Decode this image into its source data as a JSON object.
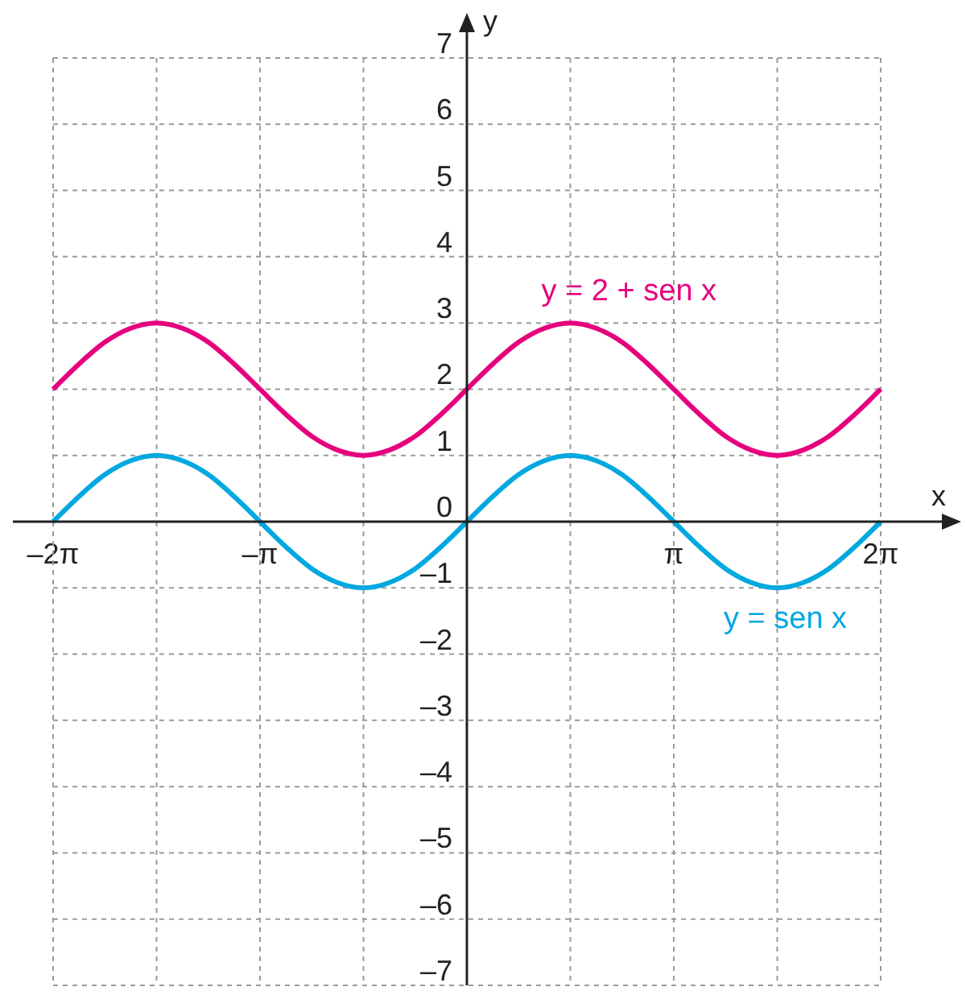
{
  "chart_data": {
    "type": "line",
    "xlabel": "x",
    "ylabel": "y",
    "categories": [
      "–2π",
      null,
      null,
      null,
      null,
      null,
      null,
      null,
      "–π",
      null,
      null,
      null,
      null,
      null,
      null,
      null,
      null,
      null,
      null,
      null,
      null,
      null,
      null,
      null,
      "π",
      null,
      null,
      null,
      null,
      null,
      null,
      null,
      "2π"
    ],
    "series": [
      {
        "name": "y = 2 + sen x",
        "color": "#e6007e",
        "values": [
          2,
          2.38,
          2.71,
          2.92,
          3,
          2.92,
          2.71,
          2.38,
          2,
          1.62,
          1.29,
          1.08,
          1,
          1.08,
          1.29,
          1.62,
          2,
          2.38,
          2.71,
          2.92,
          3,
          2.92,
          2.71,
          2.38,
          2,
          1.62,
          1.29,
          1.08,
          1,
          1.08,
          1.29,
          1.62,
          2
        ]
      },
      {
        "name": "y = sen x",
        "color": "#00a8e0",
        "values": [
          0,
          0.38,
          0.71,
          0.92,
          1,
          0.92,
          0.71,
          0.38,
          0,
          -0.38,
          -0.71,
          -0.92,
          -1,
          -0.92,
          -0.71,
          -0.38,
          0,
          0.38,
          0.71,
          0.92,
          1,
          0.92,
          0.71,
          0.38,
          0,
          -0.38,
          -0.71,
          -0.92,
          -1,
          -0.92,
          -0.71,
          -0.38,
          0
        ]
      }
    ],
    "ylim": [
      -7,
      7
    ],
    "yticks": [
      {
        "value": -7,
        "label": "–7"
      },
      {
        "value": -6,
        "label": "–6"
      },
      {
        "value": -5,
        "label": "–5"
      },
      {
        "value": -4,
        "label": "–4"
      },
      {
        "value": -3,
        "label": "–3"
      },
      {
        "value": -2,
        "label": "–2"
      },
      {
        "value": -1,
        "label": "–1"
      },
      0,
      1,
      2,
      3,
      4,
      5,
      6,
      7
    ],
    "grid": true,
    "legend": false,
    "marker": "none",
    "line_style": "solid"
  }
}
